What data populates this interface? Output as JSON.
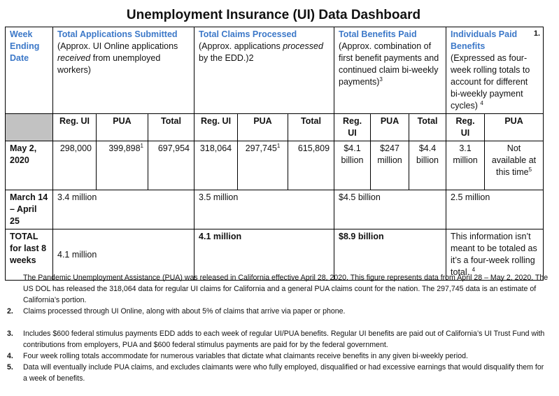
{
  "header": {
    "title": "Unemployment Insurance (UI) Data Dashboard"
  },
  "table": {
    "columns": [
      {
        "title": "Week Ending Date"
      },
      {
        "title": "Total Applications Submitted",
        "note_pre": "(Approx. UI Online applications ",
        "note_em": "received",
        "note_post": " from unemployed workers)"
      },
      {
        "title": "Total Claims Processed",
        "note_pre": "(Approx. applications ",
        "note_em": "processed",
        "note_post": " by the EDD.)2"
      },
      {
        "title": "Total Benefits Paid",
        "note": "(Approx. combination of first benefit payments and continued claim bi-weekly payments)",
        "sup": "3"
      },
      {
        "title": "Individuals Paid Benefits",
        "note": "(Expressed as four-week rolling totals to account for different bi-weekly payment cycles)",
        "sup": "4"
      }
    ],
    "subheaders": [
      "Reg. UI",
      "PUA",
      "Total",
      "Reg. UI",
      "PUA",
      "Total",
      "Reg. UI",
      "PUA",
      "Total",
      "Reg. UI",
      "PUA"
    ],
    "rows": [
      {
        "label": "May 2, 2020",
        "cells": [
          {
            "text": "298,000"
          },
          {
            "text": "399,898",
            "sup": "1"
          },
          {
            "text": "697,954"
          },
          {
            "text": "318,064"
          },
          {
            "text": "297,745",
            "sup": "1"
          },
          {
            "text": "615,809"
          },
          {
            "text": "$4.1 billion"
          },
          {
            "text": "$247 million"
          },
          {
            "text": "$4.4 billion"
          },
          {
            "text": "3.1 million"
          },
          {
            "text": "Not available at this time",
            "sup": "5"
          }
        ]
      },
      {
        "label": "March 14 – April 25",
        "cells": [
          {
            "text": "3.4 million"
          },
          {
            "text": "3.5 million"
          },
          {
            "text": "$4.5 billion"
          },
          {
            "text": "2.5 million"
          }
        ]
      },
      {
        "label": "TOTAL for last 8 weeks",
        "cells": [
          {
            "text": "4.1 million"
          },
          {
            "text": "4.1 million"
          },
          {
            "text": "$8.9 billion"
          },
          {
            "text": "This information isn’t meant to be totaled as it’s a four-week rolling total.",
            "sup": "4"
          }
        ]
      }
    ]
  },
  "notes": [
    {
      "number": "1.",
      "text": "The Pandemic Unemployment Assistance (PUA) was released in California effective April 28, 2020.  This figure represents data from April 28 – May 2, 2020.  The US DOL has released the 318,064 data for regular UI claims for California and a general PUA claims count for the nation.  The 297,745 data is an estimate of California’s portion."
    },
    {
      "number": "2.",
      "text": "Claims processed through UI Online, along with about 5% of claims that arrive via paper or phone."
    },
    {
      "number": "3.",
      "text": "Includes $600 federal stimulus payments EDD adds to each week of regular UI/PUA benefits. Regular UI benefits are paid out of California’s UI Trust Fund with contributions from employers, PUA and $600 federal stimulus payments are paid for by the federal government."
    },
    {
      "number": "4.",
      "text": "Four week rolling totals accommodate for numerous variables that dictate what claimants receive benefits in any given bi-weekly period."
    },
    {
      "number": "5.",
      "text": "Data will eventually include PUA claims, and excludes claimants were who fully employed, disqualified or had excessive earnings that would disqualify them for a week of benefits."
    }
  ]
}
